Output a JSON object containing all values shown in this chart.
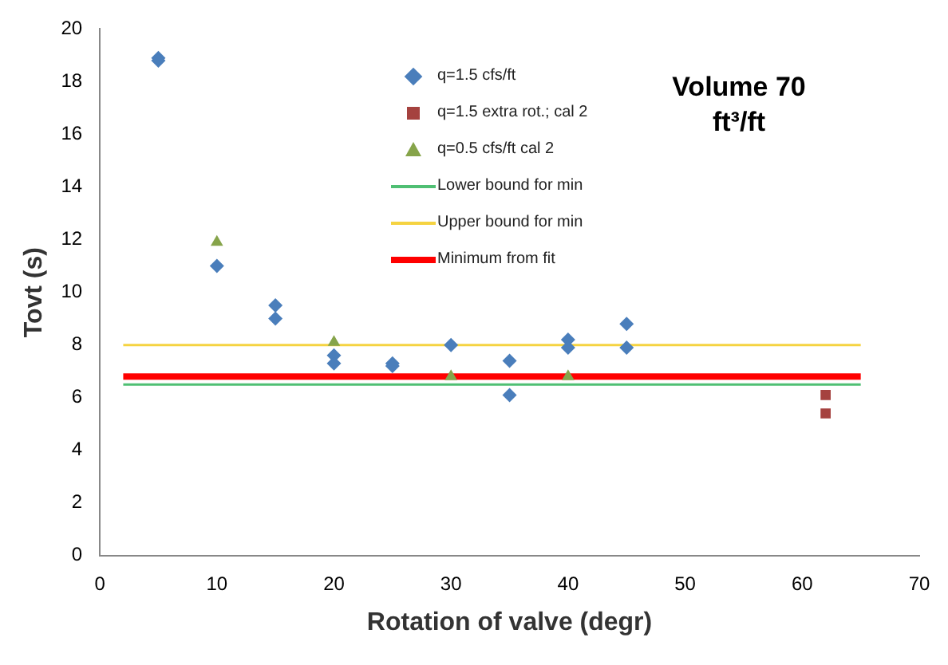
{
  "chart_data": {
    "type": "scatter",
    "title": "Volume 70 ft³/ft",
    "xlabel": "Rotation of valve (degr)",
    "ylabel": "Tovt (s)",
    "xlim": [
      0,
      70
    ],
    "xticks": [
      0,
      10,
      20,
      30,
      40,
      50,
      60,
      70
    ],
    "ylim": [
      0,
      20
    ],
    "yticks": [
      0,
      2,
      4,
      6,
      8,
      10,
      12,
      14,
      16,
      18,
      20
    ],
    "grid": false,
    "legend": "top",
    "series": [
      {
        "name": "q=1.5 cfs/ft",
        "color": "#4a7ebb",
        "marker": "diamond",
        "x": [
          5,
          5,
          10,
          15,
          15,
          20,
          20,
          25,
          25,
          30,
          35,
          35,
          40,
          40,
          45,
          45
        ],
        "values": [
          18.9,
          18.8,
          11.0,
          9.5,
          9.0,
          7.6,
          7.3,
          7.3,
          7.2,
          8.0,
          7.4,
          6.1,
          8.2,
          7.9,
          8.8,
          7.9
        ]
      },
      {
        "name": "q=1.5 extra rot.; cal 2",
        "color": "#a5423f",
        "marker": "square",
        "x": [
          62,
          62
        ],
        "values": [
          6.1,
          5.4
        ]
      },
      {
        "name": "q=0.5 cfs/ft cal 2",
        "color": "#86a44a",
        "marker": "triangle",
        "x": [
          10,
          20,
          30,
          40
        ],
        "values": [
          11.9,
          8.1,
          6.8,
          6.8
        ]
      },
      {
        "name": "Lower bound for min",
        "type": "line",
        "color": "#4fbf73",
        "marker": "none",
        "x": [
          2,
          65
        ],
        "values": [
          6.5,
          6.5
        ]
      },
      {
        "name": "Upper bound for min",
        "type": "line",
        "color": "#f5d341",
        "marker": "none",
        "x": [
          2,
          65
        ],
        "values": [
          8.0,
          8.0
        ]
      },
      {
        "name": "Minimum from fit",
        "type": "line",
        "color": "#ff0000",
        "marker": "none",
        "x": [
          2,
          65
        ],
        "values": [
          6.8,
          6.8
        ]
      }
    ]
  }
}
